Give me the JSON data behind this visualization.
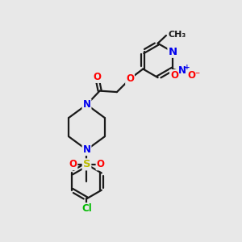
{
  "bg_color": "#e8e8e8",
  "bond_color": "#1a1a1a",
  "bond_width": 1.6,
  "atom_colors": {
    "O": "#ff0000",
    "N": "#0000ee",
    "S": "#bbbb00",
    "Cl": "#00bb00",
    "C": "#1a1a1a"
  },
  "font_size": 8.5
}
